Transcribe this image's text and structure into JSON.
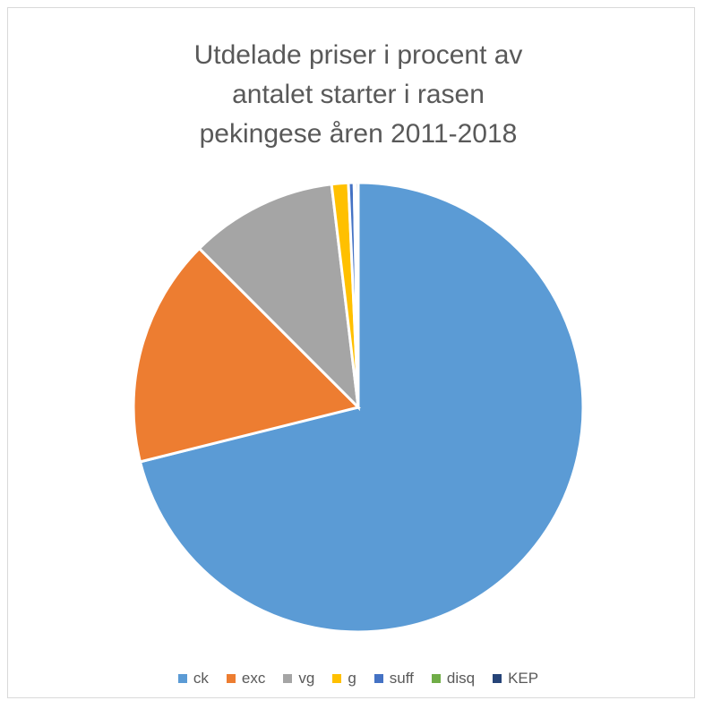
{
  "chart_data": {
    "type": "pie",
    "title": "Utdelade priser i procent av antalet starter i rasen pekingese åren 2011-2018",
    "categories": [
      "ck",
      "exc",
      "vg",
      "g",
      "suff",
      "disq",
      "KEP"
    ],
    "values": [
      71.1,
      16.4,
      10.6,
      1.2,
      0.4,
      0.1,
      0.2
    ],
    "colors": [
      "#5b9bd5",
      "#ed7d31",
      "#a5a5a5",
      "#ffc000",
      "#4472c4",
      "#70ad47",
      "#264478"
    ],
    "legend": "bottom"
  }
}
